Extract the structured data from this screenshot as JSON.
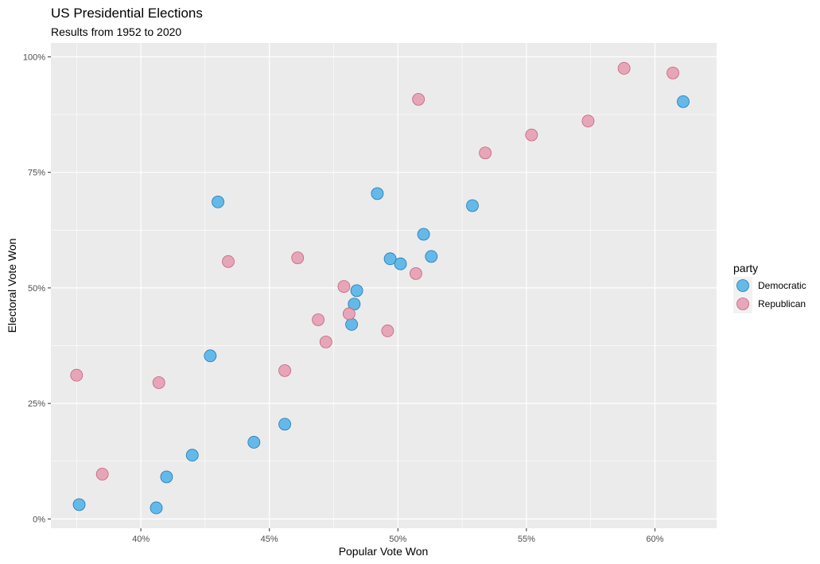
{
  "chart_data": {
    "type": "scatter",
    "title": "US Presidential Elections",
    "subtitle": "Results from 1952 to 2020",
    "xlabel": "Popular Vote Won",
    "ylabel": "Electoral Vote Won",
    "xlim": [
      0.365,
      0.624
    ],
    "ylim": [
      -0.02,
      1.03
    ],
    "x_ticks": [
      0.4,
      0.45,
      0.5,
      0.55,
      0.6
    ],
    "x_tick_labels": [
      "40%",
      "45%",
      "50%",
      "55%",
      "60%"
    ],
    "y_ticks": [
      0.0,
      0.25,
      0.5,
      0.75,
      1.0
    ],
    "y_tick_labels": [
      "0%",
      "25%",
      "50%",
      "75%",
      "100%"
    ],
    "grid": true,
    "legend": {
      "title": "party",
      "position": "right"
    },
    "series": [
      {
        "name": "Democratic",
        "color": "#56B4E9",
        "points": [
          [
            0.611,
            0.903
          ],
          [
            0.492,
            0.704
          ],
          [
            0.43,
            0.686
          ],
          [
            0.529,
            0.678
          ],
          [
            0.51,
            0.616
          ],
          [
            0.513,
            0.568
          ],
          [
            0.497,
            0.563
          ],
          [
            0.501,
            0.552
          ],
          [
            0.484,
            0.494
          ],
          [
            0.483,
            0.465
          ],
          [
            0.482,
            0.421
          ],
          [
            0.427,
            0.353
          ],
          [
            0.456,
            0.205
          ],
          [
            0.444,
            0.166
          ],
          [
            0.42,
            0.138
          ],
          [
            0.41,
            0.091
          ],
          [
            0.376,
            0.031
          ],
          [
            0.406,
            0.024
          ]
        ]
      },
      {
        "name": "Republican",
        "color": "#E69FB2",
        "points": [
          [
            0.588,
            0.975
          ],
          [
            0.607,
            0.965
          ],
          [
            0.508,
            0.908
          ],
          [
            0.574,
            0.861
          ],
          [
            0.552,
            0.831
          ],
          [
            0.534,
            0.792
          ],
          [
            0.434,
            0.557
          ],
          [
            0.461,
            0.565
          ],
          [
            0.507,
            0.531
          ],
          [
            0.479,
            0.503
          ],
          [
            0.481,
            0.444
          ],
          [
            0.469,
            0.431
          ],
          [
            0.496,
            0.407
          ],
          [
            0.472,
            0.383
          ],
          [
            0.456,
            0.321
          ],
          [
            0.375,
            0.311
          ],
          [
            0.407,
            0.295
          ],
          [
            0.385,
            0.097
          ]
        ]
      }
    ]
  }
}
